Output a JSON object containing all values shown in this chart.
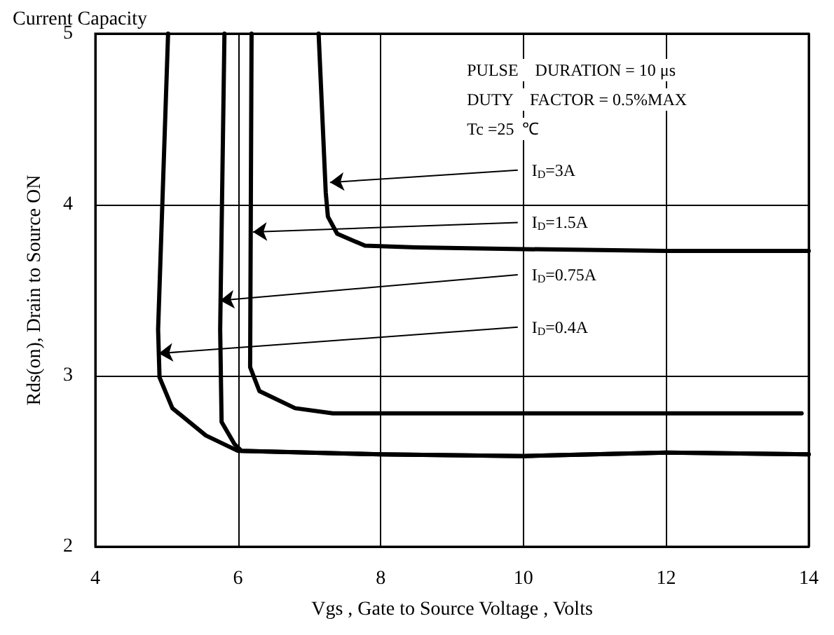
{
  "chart_data": {
    "type": "line",
    "title": "Current Capacity",
    "xlabel": "Vgs , Gate to Source Voltage , Volts",
    "ylabel": "Rds(on), Drain to Source ON",
    "xlim": [
      4,
      14
    ],
    "ylim": [
      2,
      5
    ],
    "xticks": [
      4,
      6,
      8,
      10,
      12,
      14
    ],
    "yticks": [
      2,
      3,
      4,
      5
    ],
    "grid": true,
    "marker": "none",
    "line_style": "solid",
    "series": [
      {
        "color": "#000000",
        "x": [
          7.13,
          7.23,
          7.26,
          7.39,
          7.78,
          8.5,
          10,
          12,
          14
        ],
        "values": [
          5,
          4.07,
          3.93,
          3.83,
          3.76,
          3.75,
          3.74,
          3.73,
          3.73
        ]
      },
      {
        "color": "#000000",
        "x": [
          6.19,
          6.17,
          6.3,
          6.8,
          7.33,
          8,
          10,
          12,
          13.9
        ],
        "values": [
          5,
          3.05,
          2.91,
          2.81,
          2.78,
          2.78,
          2.78,
          2.78,
          2.78
        ]
      },
      {
        "color": "#000000",
        "x": [
          5.81,
          5.75,
          5.77,
          5.95,
          6.05,
          8,
          10,
          12,
          14
        ],
        "values": [
          5,
          3.27,
          2.73,
          2.6,
          2.56,
          2.54,
          2.53,
          2.55,
          2.54
        ]
      },
      {
        "color": "#000000",
        "x": [
          5.02,
          4.88,
          4.9,
          5.08,
          5.55,
          6,
          8,
          10,
          12,
          14
        ],
        "values": [
          5,
          3.27,
          2.99,
          2.81,
          2.65,
          2.56,
          2.54,
          2.53,
          2.55,
          2.54
        ]
      }
    ],
    "annotations": [
      "PULSE    DURATION = 10 μs",
      "DUTY    FACTOR = 0.5%MAX",
      "Tc =25  ℃",
      {
        "text": "I$_{D}$=3A",
        "x": 7.29,
        "y": 4.13
      },
      {
        "text": "I$_{D}$=1.5A",
        "x": 6.21,
        "y": 3.84
      },
      {
        "text": "I$_{D}$=0.75A",
        "x": 5.75,
        "y": 3.44
      },
      {
        "text": "I$_{D}$=0.4A",
        "x": 4.89,
        "y": 3.13
      }
    ]
  }
}
